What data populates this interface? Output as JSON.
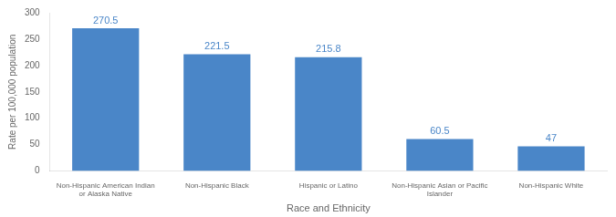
{
  "chart_data": {
    "type": "bar",
    "categories": [
      "Non-Hispanic American Indian\nor Alaska Native",
      "Non-Hispanic Black",
      "Hispanic or Latino",
      "Non-Hispanic Asian or Pacific\nIslander",
      "Non-Hispanic White"
    ],
    "values": [
      270.5,
      221.5,
      215.8,
      60.5,
      47
    ],
    "color": "#4a86c8",
    "xlabel": "Race and Ethnicity",
    "ylabel": "Rate per 100,000 population",
    "ylim": [
      0,
      300
    ],
    "yticks": [
      0,
      50,
      100,
      150,
      200,
      250,
      300
    ],
    "grid": false,
    "data_labels": true
  }
}
